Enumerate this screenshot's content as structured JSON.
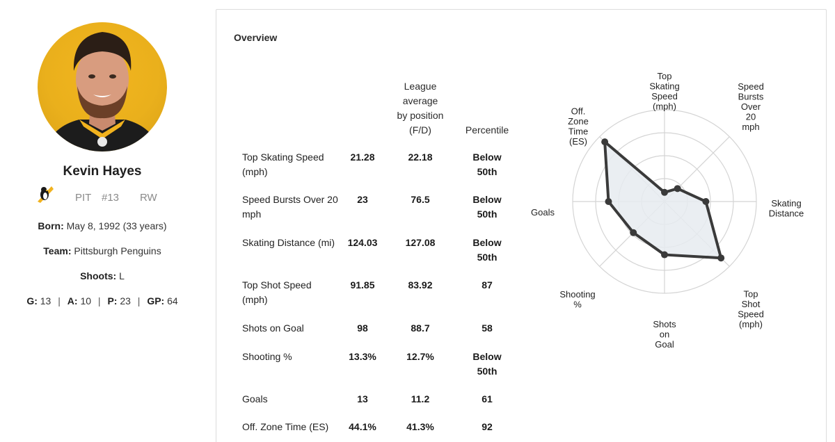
{
  "player": {
    "name": "Kevin Hayes",
    "team_abbr": "PIT",
    "number": "#13",
    "position": "RW",
    "born_label": "Born:",
    "born_value": "May 8, 1992 (33 years)",
    "team_label": "Team:",
    "team_value": "Pittsburgh Penguins",
    "shoots_label": "Shoots:",
    "shoots_value": "L",
    "stats": {
      "g_label": "G:",
      "g_value": "13",
      "a_label": "A:",
      "a_value": "10",
      "p_label": "P:",
      "p_value": "23",
      "gp_label": "GP:",
      "gp_value": "64"
    }
  },
  "overview": {
    "title": "Overview",
    "columns": {
      "league_line1": "League",
      "league_line2": "average",
      "league_line3": "by position",
      "league_line4": "(F/D)",
      "percentile": "Percentile"
    },
    "rows": [
      {
        "label": "Top Skating Speed (mph)",
        "value": "21.28",
        "league_avg": "22.18",
        "percentile": "Below 50th"
      },
      {
        "label": "Speed Bursts Over 20 mph",
        "value": "23",
        "league_avg": "76.5",
        "percentile": "Below 50th"
      },
      {
        "label": "Skating Distance (mi)",
        "value": "124.03",
        "league_avg": "127.08",
        "percentile": "Below 50th"
      },
      {
        "label": "Top Shot Speed (mph)",
        "value": "91.85",
        "league_avg": "83.92",
        "percentile": "87"
      },
      {
        "label": "Shots on Goal",
        "value": "98",
        "league_avg": "88.7",
        "percentile": "58"
      },
      {
        "label": "Shooting %",
        "value": "13.3%",
        "league_avg": "12.7%",
        "percentile": "Below 50th"
      },
      {
        "label": "Goals",
        "value": "13",
        "league_avg": "11.2",
        "percentile": "61"
      },
      {
        "label": "Off. Zone Time (ES)",
        "value": "44.1%",
        "league_avg": "41.3%",
        "percentile": "92"
      }
    ]
  },
  "radar": {
    "axes": [
      {
        "lines": [
          "Top",
          "Skating",
          "Speed",
          "(mph)"
        ],
        "percentile": 10
      },
      {
        "lines": [
          "Speed",
          "Bursts",
          "Over",
          "20",
          "mph"
        ],
        "percentile": 20
      },
      {
        "lines": [
          "Skating",
          "Distance"
        ],
        "percentile": 45
      },
      {
        "lines": [
          "Top",
          "Shot",
          "Speed",
          "(mph)"
        ],
        "percentile": 87
      },
      {
        "lines": [
          "Shots",
          "on",
          "Goal"
        ],
        "percentile": 58
      },
      {
        "lines": [
          "Shooting",
          "%"
        ],
        "percentile": 48
      },
      {
        "lines": [
          "Goals"
        ],
        "percentile": 61
      },
      {
        "lines": [
          "Off.",
          "Zone",
          "Time",
          "(ES)"
        ],
        "percentile": 92
      }
    ],
    "fill_color": "#e6ebf0",
    "line_color": "#3a3a3a",
    "grid_color": "#d4d4d4"
  }
}
